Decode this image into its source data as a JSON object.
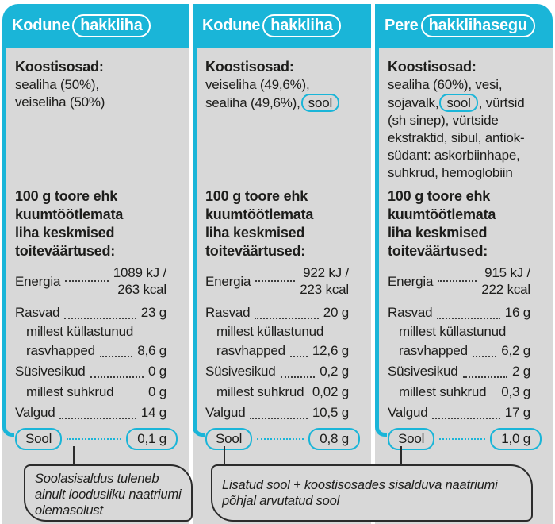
{
  "colors": {
    "accent_cyan": "#1ab5d8",
    "panel_gray": "#d8d8d8",
    "text_dark": "#1d1d1b",
    "callout_border": "#2b2b2b",
    "header_text": "#ffffff"
  },
  "shared": {
    "ingredients_heading": "Koostisosad:",
    "nutrition_heading_lines": [
      "100 g toore ehk",
      "kuumtöötlemata",
      "liha keskmised",
      "toiteväärtused:"
    ],
    "labels": {
      "energia": "Energia",
      "rasvad": "Rasvad",
      "kyllastunud_line1": "millest küllastunud",
      "kyllastunud_line2": "rasvhapped",
      "sysivesikud": "Süsivesikud",
      "suhkrud": "millest suhkrud",
      "valgud": "Valgud",
      "sool": "Sool"
    }
  },
  "columns": [
    {
      "title_prefix": "Kodune",
      "title_boxed": "hakkliha",
      "ingredients": [
        [
          {
            "text": "sealiha (50%),"
          }
        ],
        [
          {
            "text": "veiseliha (50%)"
          }
        ]
      ],
      "values": {
        "energia_line1": "1089 kJ /",
        "energia_line2": "263 kcal",
        "rasvad": "23 g",
        "rasvhapped": "8,6 g",
        "sysivesikud": "0 g",
        "suhkrud": "0 g",
        "valgud": "14 g",
        "sool": "0,1 g"
      }
    },
    {
      "title_prefix": "Kodune",
      "title_boxed": "hakkliha",
      "ingredients": [
        [
          {
            "text": "veiseliha (49,6%),"
          }
        ],
        [
          {
            "text": "sealiha (49,6%),"
          },
          {
            "text": "sool",
            "box": true
          }
        ]
      ],
      "values": {
        "energia_line1": "922 kJ /",
        "energia_line2": "223 kcal",
        "rasvad": "20 g",
        "rasvhapped": "12,6 g",
        "sysivesikud": "0,2 g",
        "suhkrud": "0,02 g",
        "valgud": "10,5 g",
        "sool": "0,8 g"
      }
    },
    {
      "title_prefix": "Pere",
      "title_boxed": "hakklihasegu",
      "ingredients": [
        [
          {
            "text": "sealiha (60%), vesi,"
          }
        ],
        [
          {
            "text": "sojavalk,"
          },
          {
            "text": "sool",
            "box": true
          },
          {
            "text": ", vürtsid"
          }
        ],
        [
          {
            "text": "(sh sinep), vürtside"
          }
        ],
        [
          {
            "text": "ekstraktid, sibul, antiok-"
          }
        ],
        [
          {
            "text": "südant: askorbiinhape,"
          }
        ],
        [
          {
            "text": "suhkrud, hemoglobiin"
          }
        ]
      ],
      "values": {
        "energia_line1": "915 kJ /",
        "energia_line2": "222 kcal",
        "rasvad": "16 g",
        "rasvhapped": "6,2 g",
        "sysivesikud": "2 g",
        "suhkrud": "0,3 g",
        "valgud": "17 g",
        "sool": "1,0 g"
      }
    }
  ],
  "annotations": {
    "left": "Soolasisaldus tuleneb ainult loodusliku naatriumi olemasolust",
    "right": "Lisatud sool + koostisosades sisalduva naatriumi põhjal arvutatud sool"
  }
}
